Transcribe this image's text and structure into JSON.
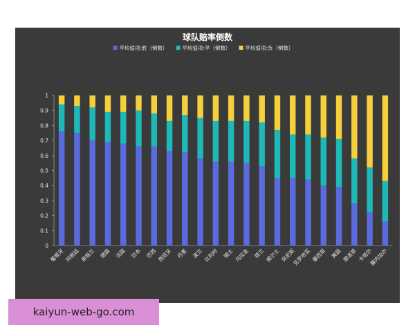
{
  "watermark": {
    "text": "kaiyun-web-go.com"
  },
  "colors": {
    "panel_bg": "#3a3a3a",
    "text": "#e6e6e6",
    "axis": "#bdbdbd",
    "series": [
      "#5a6bde",
      "#1fb8b8",
      "#f6cf3c"
    ]
  },
  "chart_data": {
    "type": "bar",
    "stacked": true,
    "title": "球队赔率倒数",
    "xlabel": "",
    "ylabel": "",
    "ylim": [
      0,
      1
    ],
    "yticks": [
      0,
      0.1,
      0.2,
      0.3,
      0.4,
      0.5,
      0.6,
      0.7,
      0.8,
      0.9,
      1
    ],
    "legend_position": "top",
    "grid": false,
    "categories": [
      "葡萄牙",
      "阿根廷",
      "英格兰",
      "德国",
      "法国",
      "日本",
      "巴西",
      "西班牙",
      "丹麦",
      "波兰",
      "比利时",
      "瑞士",
      "乌拉圭",
      "荷兰",
      "威尔士",
      "突尼斯",
      "克罗地亚",
      "塞西哥",
      "美国",
      "摩洛哥",
      "卡塔尔",
      "塞内加尔"
    ],
    "series": [
      {
        "name": "平均值项:胜（倒数）",
        "values": [
          0.76,
          0.75,
          0.7,
          0.69,
          0.68,
          0.66,
          0.66,
          0.63,
          0.62,
          0.58,
          0.56,
          0.56,
          0.55,
          0.53,
          0.45,
          0.45,
          0.44,
          0.4,
          0.39,
          0.28,
          0.22,
          0.16
        ]
      },
      {
        "name": "平均值项:平（倒数）",
        "values": [
          0.18,
          0.18,
          0.22,
          0.2,
          0.21,
          0.24,
          0.22,
          0.2,
          0.25,
          0.27,
          0.27,
          0.27,
          0.28,
          0.29,
          0.32,
          0.29,
          0.3,
          0.32,
          0.32,
          0.3,
          0.3,
          0.27
        ]
      },
      {
        "name": "平均值项:负（倒数）",
        "values": [
          0.06,
          0.07,
          0.08,
          0.11,
          0.11,
          0.1,
          0.12,
          0.17,
          0.13,
          0.15,
          0.17,
          0.17,
          0.17,
          0.18,
          0.23,
          0.26,
          0.26,
          0.28,
          0.29,
          0.42,
          0.48,
          0.57
        ]
      }
    ]
  }
}
